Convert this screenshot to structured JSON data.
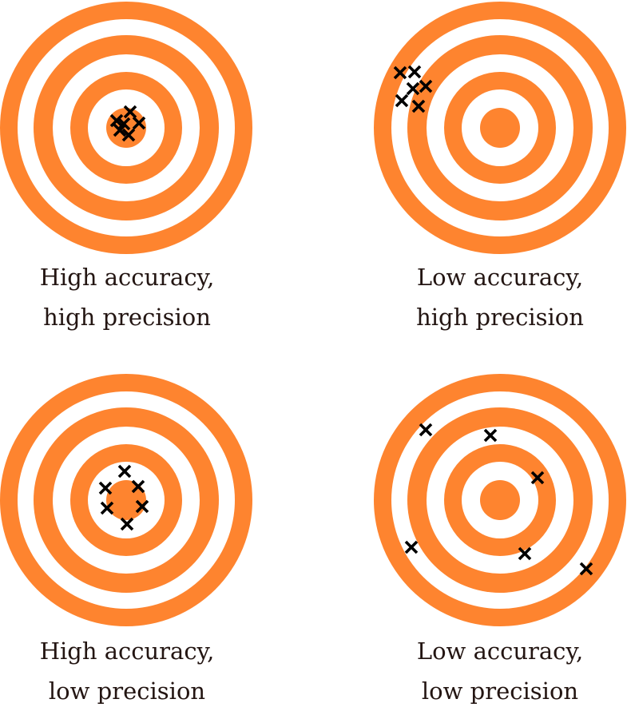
{
  "colors": {
    "ring": "#fe842f",
    "gap": "#ffffff",
    "mark": "#000000",
    "text": "#231512"
  },
  "panels": [
    {
      "id": "high-accuracy-high-precision",
      "line1": "High accuracy,",
      "line2": "high precision"
    },
    {
      "id": "low-accuracy-high-precision",
      "line1": "Low accuracy,",
      "line2": "high precision"
    },
    {
      "id": "high-accuracy-low-precision",
      "line1": "High accuracy,",
      "line2": "low precision"
    },
    {
      "id": "low-accuracy-low-precision",
      "line1": "Low accuracy,",
      "line2": "low precision"
    }
  ]
}
